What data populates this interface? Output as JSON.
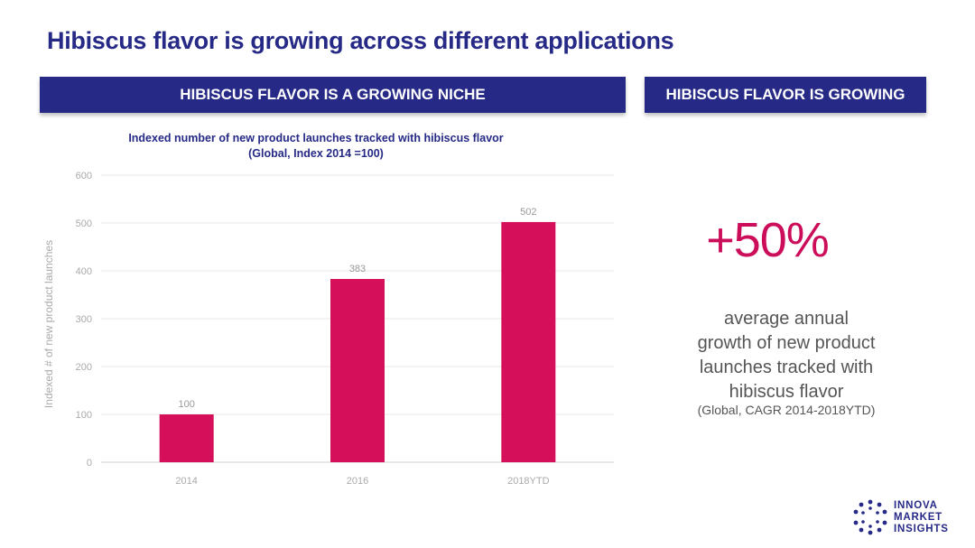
{
  "slide": {
    "title": "Hibiscus flavor is growing across different applications"
  },
  "banners": {
    "left": "HIBISCUS FLAVOR IS A GROWING NICHE",
    "right": "HIBISCUS FLAVOR IS GROWING"
  },
  "stat": {
    "value": "+50%",
    "description_lines": [
      "average annual",
      "growth of new product",
      "launches tracked with",
      "hibiscus flavor"
    ],
    "note": "(Global, CAGR 2014-2018YTD)"
  },
  "logo": {
    "lines": [
      "INNOVA",
      "MARKET",
      "INSIGHTS"
    ]
  },
  "colors": {
    "navy": "#262a86",
    "bar": "#d50f5a",
    "stat": "#cc0e5a"
  },
  "chart_data": {
    "type": "bar",
    "title_lines": [
      "Indexed number of new product launches tracked with hibiscus flavor",
      "(Global, Index 2014 =100)"
    ],
    "categories": [
      "2014",
      "2016",
      "2018YTD"
    ],
    "values": [
      100,
      383,
      502
    ],
    "data_labels": [
      "100",
      "383",
      "502"
    ],
    "xlabel": "",
    "ylabel": "Indexed # of new product launches",
    "ylim": [
      0,
      600
    ],
    "yticks": [
      0,
      100,
      200,
      300,
      400,
      500,
      600
    ],
    "grid": true,
    "legend": "none"
  }
}
